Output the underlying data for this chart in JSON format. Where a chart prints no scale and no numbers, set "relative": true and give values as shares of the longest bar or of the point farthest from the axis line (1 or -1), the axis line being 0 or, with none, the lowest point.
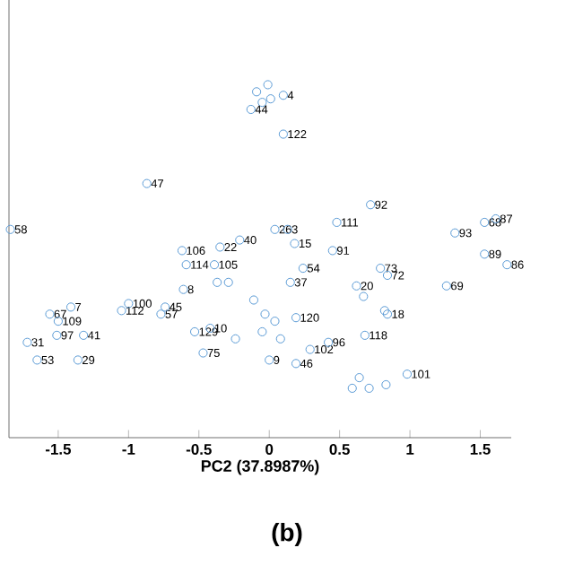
{
  "chart_data": {
    "type": "scatter",
    "xlabel": "PC2 (37.8987%)",
    "relative": true,
    "marker": "circle",
    "xlim": [
      -1.85,
      1.72
    ],
    "xticks": [
      -1.5,
      -1,
      -0.5,
      0,
      0.5,
      1,
      1.5
    ],
    "series": [
      {
        "color": "#5b9bd5",
        "x": [
          -1.84,
          -0.87,
          0.1,
          -0.13,
          0.1,
          -0.09,
          -0.05,
          0.01,
          -0.01,
          0.72,
          0.48,
          0.04,
          0.13,
          0.18,
          0.45,
          0.24,
          0.15,
          1.61,
          1.53,
          1.32,
          1.53,
          1.69,
          0.79,
          0.84,
          0.62,
          0.67,
          1.26,
          0.82,
          0.84,
          0.68,
          0.19,
          0.42,
          0.29,
          0.19,
          0.98,
          0.59,
          0.71,
          0.83,
          0.64,
          0.0,
          -0.62,
          -0.35,
          -0.21,
          -0.59,
          -0.39,
          -0.37,
          -0.29,
          -1.0,
          -1.05,
          -0.61,
          -0.74,
          -0.77,
          -1.41,
          -1.56,
          -1.5,
          -1.51,
          -1.32,
          -1.72,
          -1.65,
          -1.36,
          -0.53,
          -0.42,
          -0.47,
          -0.24,
          -0.11,
          -0.03,
          0.04,
          -0.05,
          0.08
        ],
        "values": [
          0.59,
          0.72,
          0.97,
          0.93,
          0.86,
          0.98,
          0.95,
          0.96,
          1.0,
          0.66,
          0.61,
          0.59,
          0.59,
          0.55,
          0.53,
          0.48,
          0.44,
          0.62,
          0.61,
          0.58,
          0.52,
          0.49,
          0.48,
          0.46,
          0.43,
          0.4,
          0.43,
          0.36,
          0.35,
          0.29,
          0.34,
          0.27,
          0.25,
          0.21,
          0.18,
          0.14,
          0.14,
          0.15,
          0.17,
          0.22,
          0.53,
          0.54,
          0.56,
          0.49,
          0.49,
          0.44,
          0.44,
          0.38,
          0.36,
          0.42,
          0.37,
          0.35,
          0.37,
          0.35,
          0.33,
          0.29,
          0.29,
          0.27,
          0.22,
          0.22,
          0.3,
          0.31,
          0.24,
          0.28,
          0.39,
          0.35,
          0.33,
          0.3,
          0.28
        ]
      }
    ],
    "annotations": [
      "(b)",
      {
        "text": "58",
        "x": -1.84,
        "y": 0.59
      },
      {
        "text": "47",
        "x": -0.87,
        "y": 0.72
      },
      {
        "text": "4",
        "x": 0.1,
        "y": 0.97
      },
      {
        "text": "44",
        "x": -0.13,
        "y": 0.93
      },
      {
        "text": "122",
        "x": 0.1,
        "y": 0.86
      },
      {
        "text": "92",
        "x": 0.72,
        "y": 0.66
      },
      {
        "text": "111",
        "x": 0.48,
        "y": 0.61
      },
      {
        "text": "26",
        "x": 0.04,
        "y": 0.59
      },
      {
        "text": "3",
        "x": 0.13,
        "y": 0.59
      },
      {
        "text": "15",
        "x": 0.18,
        "y": 0.55
      },
      {
        "text": "91",
        "x": 0.45,
        "y": 0.53
      },
      {
        "text": "54",
        "x": 0.24,
        "y": 0.48
      },
      {
        "text": "37",
        "x": 0.15,
        "y": 0.44
      },
      {
        "text": "87",
        "x": 1.61,
        "y": 0.62
      },
      {
        "text": "68",
        "x": 1.53,
        "y": 0.61
      },
      {
        "text": "93",
        "x": 1.32,
        "y": 0.58
      },
      {
        "text": "89",
        "x": 1.53,
        "y": 0.52
      },
      {
        "text": "86",
        "x": 1.69,
        "y": 0.49
      },
      {
        "text": "73",
        "x": 0.79,
        "y": 0.48
      },
      {
        "text": "72",
        "x": 0.84,
        "y": 0.46
      },
      {
        "text": "20",
        "x": 0.62,
        "y": 0.43
      },
      {
        "text": "69",
        "x": 1.26,
        "y": 0.43
      },
      {
        "text": "18",
        "x": 0.84,
        "y": 0.35
      },
      {
        "text": "118",
        "x": 0.68,
        "y": 0.29
      },
      {
        "text": "120",
        "x": 0.19,
        "y": 0.34
      },
      {
        "text": "96",
        "x": 0.42,
        "y": 0.27
      },
      {
        "text": "102",
        "x": 0.29,
        "y": 0.25
      },
      {
        "text": "46",
        "x": 0.19,
        "y": 0.21
      },
      {
        "text": "101",
        "x": 0.98,
        "y": 0.18
      },
      {
        "text": "9",
        "x": 0.0,
        "y": 0.22
      },
      {
        "text": "106",
        "x": -0.62,
        "y": 0.53
      },
      {
        "text": "22",
        "x": -0.35,
        "y": 0.54
      },
      {
        "text": "40",
        "x": -0.21,
        "y": 0.56
      },
      {
        "text": "114",
        "x": -0.59,
        "y": 0.49
      },
      {
        "text": "105",
        "x": -0.39,
        "y": 0.49
      },
      {
        "text": "100",
        "x": -1.0,
        "y": 0.38
      },
      {
        "text": "112",
        "x": -1.05,
        "y": 0.36
      },
      {
        "text": "8",
        "x": -0.61,
        "y": 0.42
      },
      {
        "text": "45",
        "x": -0.74,
        "y": 0.37
      },
      {
        "text": "57",
        "x": -0.77,
        "y": 0.35
      },
      {
        "text": "7",
        "x": -1.41,
        "y": 0.37
      },
      {
        "text": "67",
        "x": -1.56,
        "y": 0.35
      },
      {
        "text": "109",
        "x": -1.5,
        "y": 0.33
      },
      {
        "text": "97",
        "x": -1.51,
        "y": 0.29
      },
      {
        "text": "41",
        "x": -1.32,
        "y": 0.29
      },
      {
        "text": "31",
        "x": -1.72,
        "y": 0.27
      },
      {
        "text": "53",
        "x": -1.65,
        "y": 0.22
      },
      {
        "text": "29",
        "x": -1.36,
        "y": 0.22
      },
      {
        "text": "129",
        "x": -0.53,
        "y": 0.3
      },
      {
        "text": "10",
        "x": -0.42,
        "y": 0.31
      },
      {
        "text": "75",
        "x": -0.47,
        "y": 0.24
      }
    ]
  }
}
